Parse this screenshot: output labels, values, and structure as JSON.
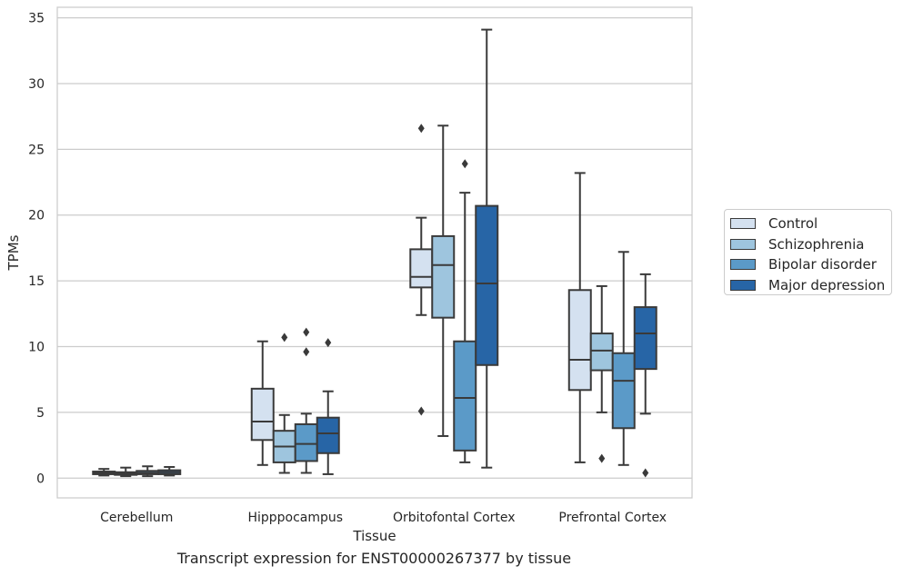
{
  "chart_data": {
    "type": "box",
    "xlabel": "Tissue",
    "ylabel": "TPMs",
    "ylim": [
      -1.5,
      35.8
    ],
    "yticks": [
      0,
      5,
      10,
      15,
      20,
      25,
      30,
      35
    ],
    "grid": "horizontal",
    "legend_position": "right-center",
    "categories": [
      "Cerebellum",
      "Hipppocampus",
      "Orbitofontal Cortex",
      "Prefrontal Cortex"
    ],
    "series": [
      {
        "name": "Control",
        "color": "#d4e1f0",
        "boxes": [
          {
            "whislo": 0.2,
            "q1": 0.3,
            "med": 0.4,
            "q3": 0.5,
            "whishi": 0.7,
            "fliers": []
          },
          {
            "whislo": 1.0,
            "q1": 2.9,
            "med": 4.3,
            "q3": 6.8,
            "whishi": 10.4,
            "fliers": []
          },
          {
            "whislo": 12.4,
            "q1": 14.5,
            "med": 15.3,
            "q3": 17.4,
            "whishi": 19.8,
            "fliers": [
              26.6,
              5.1
            ]
          },
          {
            "whislo": 1.2,
            "q1": 6.7,
            "med": 9.0,
            "q3": 14.3,
            "whishi": 23.2,
            "fliers": []
          }
        ]
      },
      {
        "name": "Schizophrenia",
        "color": "#9ec5de",
        "boxes": [
          {
            "whislo": 0.15,
            "q1": 0.25,
            "med": 0.35,
            "q3": 0.45,
            "whishi": 0.8,
            "fliers": []
          },
          {
            "whislo": 0.4,
            "q1": 1.2,
            "med": 2.4,
            "q3": 3.6,
            "whishi": 4.8,
            "fliers": [
              10.7
            ]
          },
          {
            "whislo": 3.2,
            "q1": 12.2,
            "med": 16.2,
            "q3": 18.4,
            "whishi": 26.8,
            "fliers": []
          },
          {
            "whislo": 5.0,
            "q1": 8.2,
            "med": 9.7,
            "q3": 11.0,
            "whishi": 14.6,
            "fliers": [
              1.5
            ]
          }
        ]
      },
      {
        "name": "Bipolar disorder",
        "color": "#5b9ac8",
        "boxes": [
          {
            "whislo": 0.15,
            "q1": 0.3,
            "med": 0.4,
            "q3": 0.55,
            "whishi": 0.9,
            "fliers": []
          },
          {
            "whislo": 0.4,
            "q1": 1.3,
            "med": 2.6,
            "q3": 4.1,
            "whishi": 4.9,
            "fliers": [
              11.1,
              9.6
            ]
          },
          {
            "whislo": 1.2,
            "q1": 2.1,
            "med": 6.1,
            "q3": 10.4,
            "whishi": 21.7,
            "fliers": [
              23.9
            ]
          },
          {
            "whislo": 1.0,
            "q1": 3.8,
            "med": 7.4,
            "q3": 9.5,
            "whishi": 17.2,
            "fliers": []
          }
        ]
      },
      {
        "name": "Major depression",
        "color": "#2765a6",
        "boxes": [
          {
            "whislo": 0.2,
            "q1": 0.3,
            "med": 0.45,
            "q3": 0.6,
            "whishi": 0.85,
            "fliers": []
          },
          {
            "whislo": 0.3,
            "q1": 1.9,
            "med": 3.4,
            "q3": 4.6,
            "whishi": 6.6,
            "fliers": [
              10.3
            ]
          },
          {
            "whislo": 0.8,
            "q1": 8.6,
            "med": 14.8,
            "q3": 20.7,
            "whishi": 34.1,
            "fliers": []
          },
          {
            "whislo": 4.9,
            "q1": 8.3,
            "med": 11.0,
            "q3": 13.0,
            "whishi": 15.5,
            "fliers": [
              0.4
            ]
          }
        ]
      }
    ]
  },
  "caption": "Transcript expression for ENST00000267377 by tissue"
}
